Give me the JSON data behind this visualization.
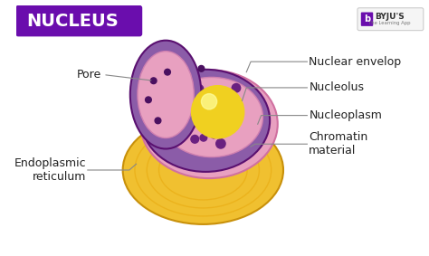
{
  "title": "NUCLEUS",
  "title_bg_color": "#6a0dad",
  "title_text_color": "#ffffff",
  "background_color": "#ffffff",
  "labels": {
    "pore": "Pore",
    "nuclear_envelop": "Nuclear envelop",
    "nucleolus": "Nucleolus",
    "nucleoplasm": "Nucleoplasm",
    "chromatin_material": "Chromatin\nmaterial",
    "endoplasmic_reticulum": "Endoplasmic\nreticulum"
  },
  "colors": {
    "outer_shell": "#f0c030",
    "outer_shell_dark": "#c8900a",
    "nuclear_envelope_outer": "#8b5ca8",
    "nuclear_envelope_inner": "#c87eb0",
    "nucleoplasm": "#e8a0c0",
    "nucleolus": "#f0d020",
    "chromatin": "#6a2080",
    "pore_dots": "#4a1060"
  },
  "annotation_color": "#555555",
  "label_fontsize": 9,
  "title_fontsize": 14
}
